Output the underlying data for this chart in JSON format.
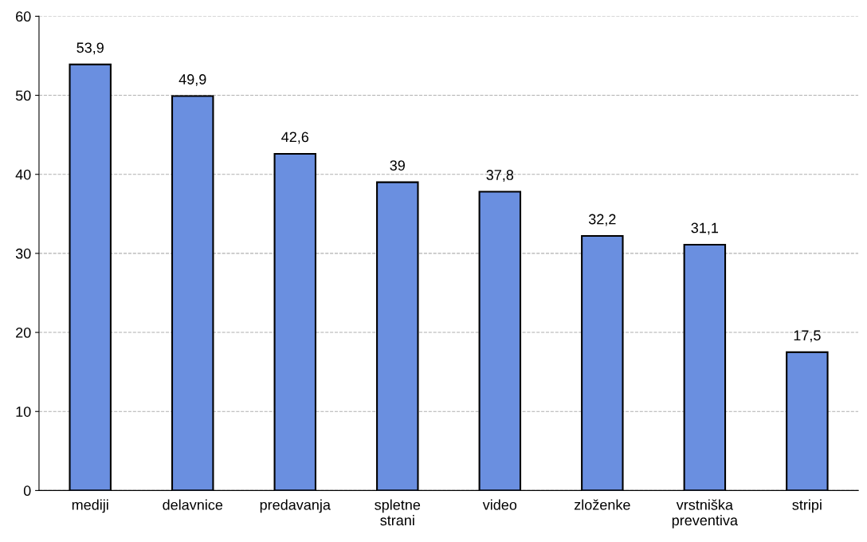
{
  "chart_data": {
    "type": "bar",
    "categories": [
      "mediji",
      "delavnice",
      "predavanja",
      "spletne\nstrani",
      "video",
      "zloženke",
      "vrstniška\npreventiva",
      "stripi"
    ],
    "values": [
      53.9,
      49.9,
      42.6,
      39,
      37.8,
      32.2,
      31.1,
      17.5
    ],
    "value_labels": [
      "53,9",
      "49,9",
      "42,6",
      "39",
      "37,8",
      "32,2",
      "31,1",
      "17,5"
    ],
    "color": "#6a8fe0",
    "ylim": [
      0,
      60
    ],
    "yticks": [
      0,
      10,
      20,
      30,
      40,
      50,
      60
    ],
    "grid": "y",
    "line_style": "dashed"
  }
}
